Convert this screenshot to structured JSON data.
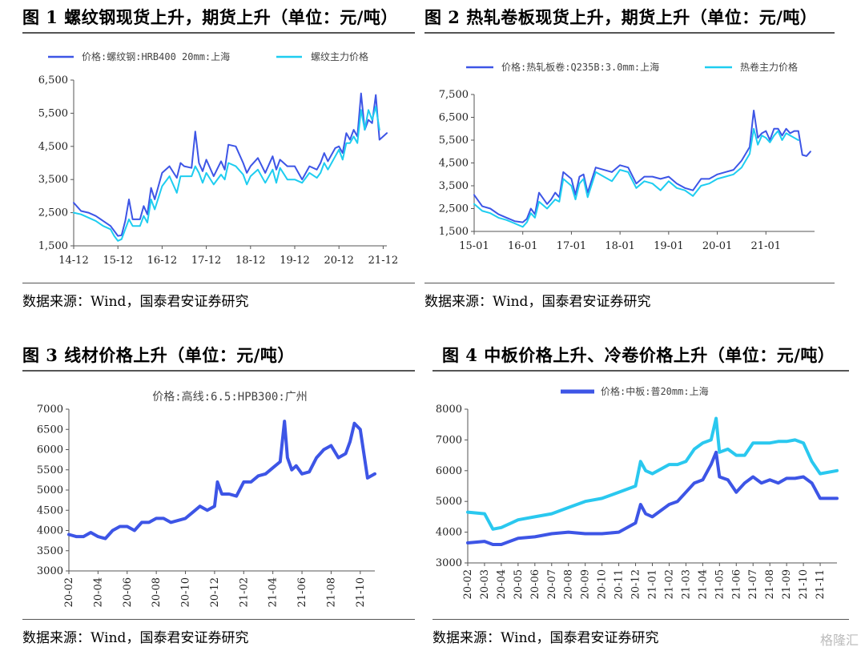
{
  "panels": [
    {
      "title": "图 1 螺纹钢现货上升，期货上升（单位：元/吨）",
      "source": "数据来源：Wind，国泰君安证券研究"
    },
    {
      "title": "图 2 热轧卷板现货上升，期货上升（单位：元/吨）",
      "source": "数据来源：Wind，国泰君安证券研究"
    },
    {
      "title": "图 3  线材价格上升（单位：元/吨）",
      "source": "数据来源：Wind，国泰君安证券研究"
    },
    {
      "title": "图 4  中板价格上升、冷卷价格上升（单位：元/吨）",
      "source": "数据来源：Wind，国泰君安证券研究"
    }
  ],
  "watermark": "格隆汇",
  "colors": {
    "spot": "#3d55e6",
    "futures": "#1ecdf0",
    "cold": "#2ac8ef",
    "axis": "#333333"
  },
  "chart_data": [
    {
      "type": "line",
      "ylim": [
        1500,
        6500
      ],
      "yticks": [
        1500,
        2500,
        3500,
        4500,
        5500,
        6500
      ],
      "ytick_labels": [
        "1,500",
        "2,500",
        "3,500",
        "4,500",
        "5,500",
        "6,500"
      ],
      "xlim": [
        0,
        85
      ],
      "xtick_pos": [
        0,
        12,
        24,
        36,
        48,
        60,
        72,
        84
      ],
      "xtick_labels": [
        "14-12",
        "15-12",
        "16-12",
        "17-12",
        "18-12",
        "19-12",
        "20-12",
        "21-12"
      ],
      "series": [
        {
          "name": "价格:螺纹钢:HRB400 20mm:上海",
          "color": "#3d55e6",
          "x": [
            0,
            2,
            4,
            6,
            8,
            10,
            11,
            12,
            13,
            14,
            15,
            16,
            18,
            19,
            20,
            21,
            22,
            24,
            26,
            28,
            29,
            30,
            32,
            33,
            34,
            35,
            36,
            38,
            40,
            41,
            42,
            44,
            46,
            47,
            48,
            50,
            52,
            54,
            55,
            56,
            58,
            60,
            62,
            64,
            66,
            67,
            68,
            69,
            70,
            71,
            72,
            73,
            74,
            75,
            76,
            77,
            78,
            79,
            80,
            81,
            82,
            83,
            84,
            85
          ],
          "y": [
            2800,
            2550,
            2500,
            2400,
            2250,
            2100,
            1950,
            1800,
            1820,
            2250,
            2900,
            2300,
            2300,
            2700,
            2450,
            3250,
            2900,
            3700,
            3900,
            3550,
            4000,
            3900,
            3850,
            4950,
            4000,
            3750,
            4100,
            3600,
            4050,
            3800,
            4550,
            4500,
            4000,
            3700,
            3900,
            4150,
            3700,
            4200,
            3800,
            4100,
            3900,
            3900,
            3500,
            3900,
            3800,
            4000,
            4300,
            4050,
            4250,
            4450,
            4500,
            4300,
            4900,
            4700,
            5000,
            4800,
            6100,
            5000,
            5300,
            5200,
            6050,
            4700,
            4800,
            4900
          ]
        },
        {
          "name": "螺纹主力价格",
          "color": "#1ecdf0",
          "x": [
            0,
            2,
            4,
            6,
            8,
            10,
            11,
            12,
            13,
            14,
            15,
            16,
            18,
            19,
            20,
            21,
            22,
            24,
            26,
            28,
            29,
            30,
            32,
            33,
            34,
            35,
            36,
            38,
            40,
            41,
            42,
            44,
            46,
            47,
            48,
            50,
            52,
            54,
            55,
            56,
            58,
            60,
            62,
            64,
            66,
            67,
            68,
            69,
            70,
            71,
            72,
            73,
            74,
            75,
            76,
            77,
            78,
            79,
            80,
            81,
            82,
            83
          ],
          "y": [
            2500,
            2450,
            2350,
            2250,
            2100,
            2000,
            1800,
            1650,
            1700,
            2000,
            2300,
            2100,
            2100,
            2400,
            2200,
            2900,
            2600,
            3300,
            3600,
            3100,
            3600,
            3600,
            3600,
            3900,
            3700,
            3400,
            3700,
            3350,
            3650,
            3500,
            4000,
            3900,
            3650,
            3350,
            3600,
            3800,
            3400,
            3800,
            3400,
            3850,
            3500,
            3500,
            3400,
            3700,
            3550,
            3700,
            4000,
            3800,
            4000,
            4200,
            4400,
            4100,
            4600,
            4600,
            4800,
            4600,
            5600,
            5000,
            5600,
            5300,
            5700,
            5000
          ]
        }
      ]
    },
    {
      "type": "line",
      "ylim": [
        1500,
        7500
      ],
      "yticks": [
        1500,
        2500,
        3500,
        4500,
        5500,
        6500,
        7500
      ],
      "ytick_labels": [
        "1,500",
        "2,500",
        "3,500",
        "4,500",
        "5,500",
        "6,500",
        "7,500"
      ],
      "xlim": [
        0,
        84
      ],
      "xtick_pos": [
        0,
        12,
        24,
        36,
        48,
        60,
        72
      ],
      "xtick_labels": [
        "15-01",
        "16-01",
        "17-01",
        "18-01",
        "19-01",
        "20-01",
        "21-01"
      ],
      "series": [
        {
          "name": "价格:热轧板卷:Q235B:3.0mm:上海",
          "color": "#3d55e6",
          "x": [
            0,
            2,
            4,
            6,
            8,
            10,
            12,
            13,
            14,
            15,
            16,
            18,
            19,
            20,
            21,
            22,
            24,
            25,
            26,
            27,
            28,
            30,
            32,
            34,
            36,
            38,
            40,
            42,
            44,
            46,
            48,
            50,
            52,
            54,
            56,
            58,
            60,
            62,
            64,
            66,
            68,
            69,
            70,
            71,
            72,
            73,
            74,
            75,
            76,
            77,
            78,
            79,
            80,
            81,
            82,
            83
          ],
          "y": [
            3100,
            2600,
            2500,
            2250,
            2100,
            1950,
            1900,
            2050,
            2500,
            2250,
            3200,
            2700,
            2900,
            3200,
            3000,
            4100,
            3800,
            3100,
            3900,
            4000,
            3200,
            4300,
            4200,
            4100,
            4400,
            4300,
            3600,
            3900,
            3900,
            3800,
            3900,
            3600,
            3400,
            3300,
            3800,
            3800,
            4000,
            4100,
            4200,
            4600,
            5200,
            6800,
            5600,
            5800,
            5900,
            5500,
            6000,
            6000,
            5700,
            6000,
            5800,
            5900,
            5900,
            4850,
            4800,
            5000
          ]
        },
        {
          "name": "热卷主力价格",
          "color": "#1ecdf0",
          "x": [
            0,
            2,
            4,
            6,
            8,
            10,
            12,
            13,
            14,
            15,
            16,
            18,
            19,
            20,
            21,
            22,
            24,
            25,
            26,
            27,
            28,
            30,
            32,
            34,
            36,
            38,
            40,
            42,
            44,
            46,
            48,
            50,
            52,
            54,
            56,
            58,
            60,
            62,
            64,
            66,
            68,
            69,
            70,
            71,
            72,
            73,
            74,
            75,
            76,
            77,
            78,
            79,
            80
          ],
          "y": [
            2700,
            2400,
            2300,
            2100,
            2000,
            1850,
            1700,
            1900,
            2300,
            2100,
            2800,
            2500,
            2700,
            2900,
            2800,
            3800,
            3500,
            2900,
            3600,
            3800,
            3000,
            4100,
            3900,
            3700,
            4200,
            4100,
            3400,
            3700,
            3600,
            3300,
            3700,
            3400,
            3300,
            3050,
            3500,
            3600,
            3800,
            3900,
            4000,
            4300,
            4900,
            6000,
            5300,
            5700,
            5600,
            5400,
            5700,
            5900,
            5500,
            5800,
            5700,
            5600,
            5500
          ]
        }
      ]
    },
    {
      "type": "line",
      "title": "价格:高线:6.5:HPB300:广州",
      "ylim": [
        3000,
        7000
      ],
      "yticks": [
        3000,
        3500,
        4000,
        4500,
        5000,
        5500,
        6000,
        6500,
        7000
      ],
      "ytick_labels": [
        "3000",
        "3500",
        "4000",
        "4500",
        "5000",
        "5500",
        "6000",
        "6500",
        "7000"
      ],
      "xlim": [
        0,
        21
      ],
      "xtick_pos": [
        0,
        2,
        4,
        6,
        8,
        10,
        12,
        14,
        16,
        18,
        20
      ],
      "xtick_labels": [
        "20-02",
        "20-04",
        "20-06",
        "20-08",
        "20-10",
        "20-12",
        "21-02",
        "21-04",
        "21-06",
        "21-08",
        "21-10"
      ],
      "series": [
        {
          "name": "价格:高线:6.5:HPB300:广州",
          "color": "#3d55e6",
          "x": [
            0,
            0.5,
            1,
            1.5,
            2,
            2.5,
            3,
            3.5,
            4,
            4.5,
            5,
            5.5,
            6,
            6.5,
            7,
            7.5,
            8,
            8.5,
            9,
            9.5,
            10,
            10.2,
            10.5,
            11,
            11.5,
            12,
            12.5,
            13,
            13.5,
            14,
            14.5,
            14.8,
            15,
            15.3,
            15.6,
            16,
            16.5,
            17,
            17.5,
            18,
            18.5,
            19,
            19.3,
            19.6,
            20,
            20.5,
            21
          ],
          "y": [
            3900,
            3850,
            3850,
            3950,
            3850,
            3800,
            4000,
            4100,
            4100,
            4000,
            4200,
            4200,
            4300,
            4300,
            4200,
            4250,
            4300,
            4450,
            4600,
            4500,
            4600,
            5200,
            4900,
            4900,
            4850,
            5200,
            5200,
            5350,
            5400,
            5550,
            5700,
            6700,
            5800,
            5500,
            5600,
            5400,
            5450,
            5800,
            6000,
            6100,
            5800,
            5900,
            6200,
            6650,
            6500,
            5300,
            5400
          ]
        }
      ]
    },
    {
      "type": "line",
      "ylim": [
        3000,
        8000
      ],
      "yticks": [
        3000,
        4000,
        5000,
        6000,
        7000,
        8000
      ],
      "ytick_labels": [
        "3000",
        "4000",
        "5000",
        "6000",
        "7000",
        "8000"
      ],
      "xlim": [
        0,
        22
      ],
      "xtick_pos": [
        0,
        1,
        2,
        3,
        4,
        5,
        6,
        7,
        8,
        9,
        10,
        11,
        12,
        13,
        14,
        15,
        16,
        17,
        18,
        19,
        20,
        21
      ],
      "xtick_labels": [
        "20-02",
        "20-03",
        "20-04",
        "20-05",
        "20-06",
        "20-07",
        "20-08",
        "20-09",
        "20-10",
        "20-11",
        "20-12",
        "21-01",
        "21-02",
        "21-03",
        "21-04",
        "21-05",
        "21-06",
        "21-07",
        "21-08",
        "21-09",
        "21-10",
        "21-11"
      ],
      "series": [
        {
          "name": "价格:中板:普20mm:上海",
          "color": "#3d55e6",
          "x": [
            0,
            1,
            1.5,
            2,
            3,
            4,
            5,
            6,
            7,
            8,
            9,
            10,
            10.3,
            10.6,
            11,
            12,
            12.5,
            13,
            13.5,
            14,
            14.5,
            14.8,
            15,
            15.5,
            16,
            16.5,
            17,
            17.5,
            18,
            18.5,
            19,
            19.5,
            20,
            20.5,
            21,
            22
          ],
          "y": [
            3650,
            3700,
            3600,
            3600,
            3800,
            3850,
            3950,
            4000,
            3950,
            3950,
            4000,
            4300,
            4900,
            4600,
            4500,
            4900,
            5000,
            5300,
            5600,
            5700,
            6200,
            6600,
            5800,
            5700,
            5300,
            5600,
            5800,
            5600,
            5700,
            5600,
            5750,
            5750,
            5800,
            5600,
            5100,
            5100
          ]
        },
        {
          "name": "",
          "color": "#2ac8ef",
          "x": [
            0,
            1,
            1.5,
            2,
            3,
            4,
            5,
            6,
            7,
            8,
            9,
            10,
            10.3,
            10.6,
            11,
            12,
            12.5,
            13,
            13.5,
            14,
            14.5,
            14.8,
            15,
            15.5,
            16,
            16.5,
            17,
            17.5,
            18,
            18.5,
            19,
            19.5,
            20,
            20.5,
            21,
            22
          ],
          "y": [
            4650,
            4600,
            4100,
            4150,
            4400,
            4500,
            4600,
            4800,
            5000,
            5100,
            5300,
            5500,
            6300,
            6000,
            5900,
            6200,
            6200,
            6300,
            6700,
            6900,
            7000,
            7700,
            6600,
            6700,
            6500,
            6500,
            6900,
            6900,
            6900,
            6950,
            6950,
            7000,
            6900,
            6300,
            5900,
            6000
          ]
        }
      ]
    }
  ]
}
